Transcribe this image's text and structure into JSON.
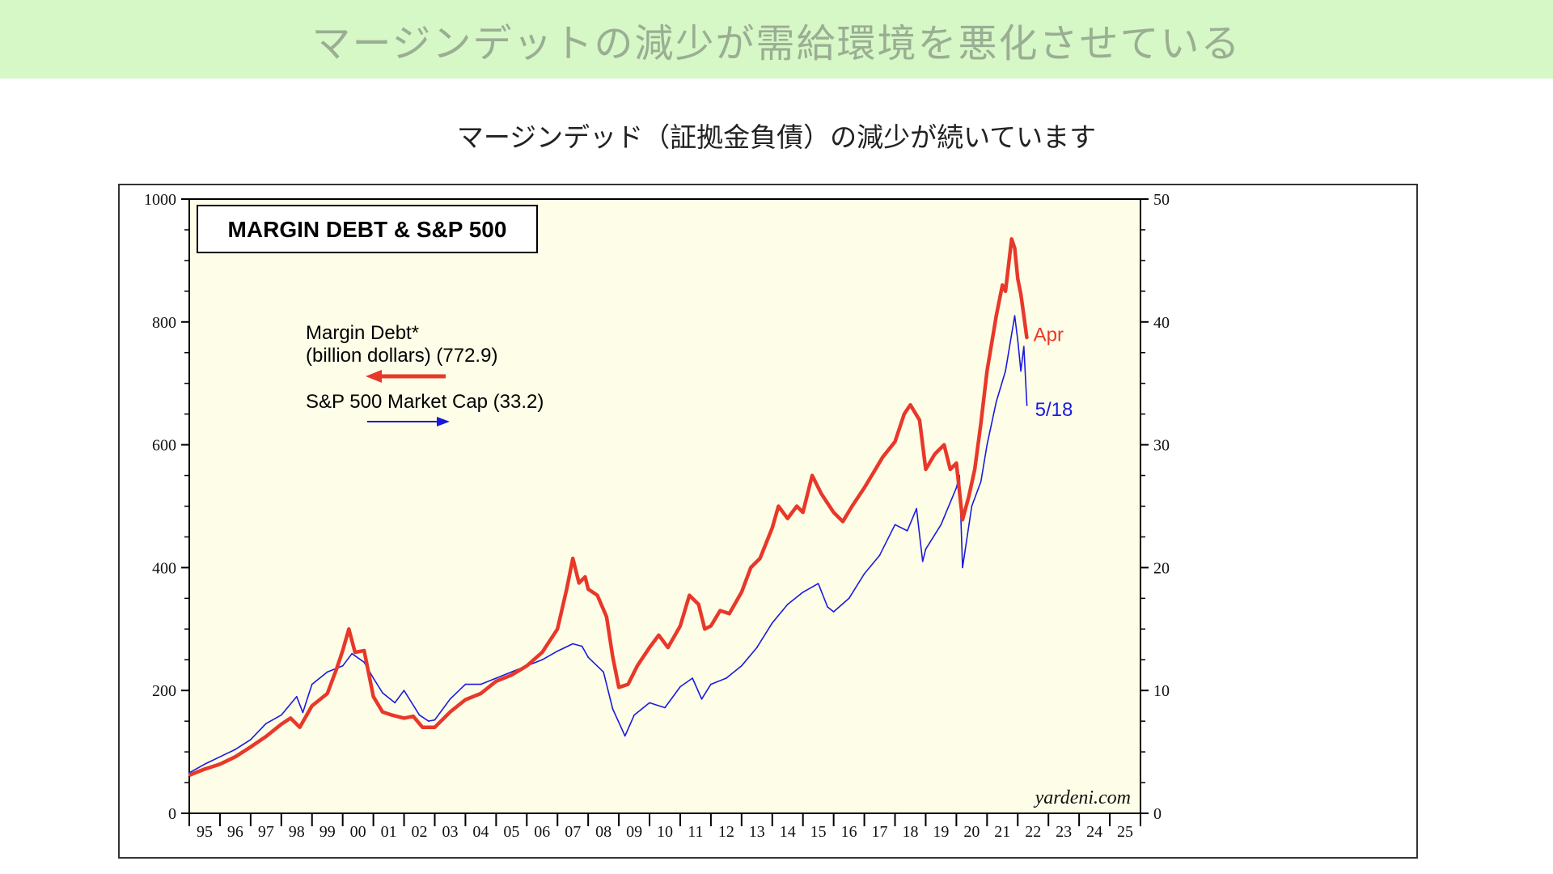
{
  "header": {
    "banner_title": "マージンデットの減少が需給環境を悪化させている",
    "subtitle": "マージンデッド（証拠金負債）の減少が続いています"
  },
  "colors": {
    "banner_bg": "#d6f7c6",
    "plot_bg": "#fefee8",
    "margin_debt": "#e8382a",
    "sp500": "#1a1adf"
  },
  "chart_data": {
    "type": "line",
    "title": "MARGIN DEBT & S&P 500",
    "credit": "yardeni.com",
    "x_tick_labels": [
      "95",
      "96",
      "97",
      "98",
      "99",
      "00",
      "01",
      "02",
      "03",
      "04",
      "05",
      "06",
      "07",
      "08",
      "09",
      "10",
      "11",
      "12",
      "13",
      "14",
      "15",
      "16",
      "17",
      "18",
      "19",
      "20",
      "21",
      "22",
      "23",
      "24",
      "25"
    ],
    "x_range": [
      1995,
      2026
    ],
    "left_axis": {
      "ylim": [
        0,
        1000
      ],
      "ticks": [
        "0",
        "200",
        "400",
        "600",
        "800",
        "1000"
      ]
    },
    "right_axis": {
      "ylim": [
        0,
        50
      ],
      "ticks": [
        "0",
        "10",
        "20",
        "30",
        "40",
        "50"
      ]
    },
    "grid": false,
    "legend_placement": "upper-left",
    "series": [
      {
        "name": "Margin Debt* (billion dollars) (772.9)",
        "legend_line1": "Margin Debt*",
        "legend_line2": "(billion dollars) (772.9)",
        "axis": "left",
        "end_label": "Apr",
        "points": [
          [
            1995.0,
            62
          ],
          [
            1995.5,
            72
          ],
          [
            1996.0,
            80
          ],
          [
            1996.5,
            92
          ],
          [
            1997.0,
            108
          ],
          [
            1997.5,
            125
          ],
          [
            1998.0,
            145
          ],
          [
            1998.3,
            155
          ],
          [
            1998.6,
            140
          ],
          [
            1999.0,
            175
          ],
          [
            1999.5,
            195
          ],
          [
            1999.8,
            235
          ],
          [
            2000.0,
            265
          ],
          [
            2000.2,
            300
          ],
          [
            2000.4,
            262
          ],
          [
            2000.7,
            265
          ],
          [
            2001.0,
            190
          ],
          [
            2001.3,
            165
          ],
          [
            2001.6,
            160
          ],
          [
            2002.0,
            155
          ],
          [
            2002.3,
            158
          ],
          [
            2002.6,
            140
          ],
          [
            2003.0,
            140
          ],
          [
            2003.5,
            165
          ],
          [
            2004.0,
            185
          ],
          [
            2004.5,
            195
          ],
          [
            2005.0,
            215
          ],
          [
            2005.5,
            225
          ],
          [
            2006.0,
            240
          ],
          [
            2006.5,
            262
          ],
          [
            2007.0,
            300
          ],
          [
            2007.3,
            365
          ],
          [
            2007.5,
            415
          ],
          [
            2007.7,
            375
          ],
          [
            2007.9,
            385
          ],
          [
            2008.0,
            365
          ],
          [
            2008.3,
            355
          ],
          [
            2008.6,
            320
          ],
          [
            2008.8,
            255
          ],
          [
            2009.0,
            205
          ],
          [
            2009.3,
            210
          ],
          [
            2009.6,
            240
          ],
          [
            2010.0,
            270
          ],
          [
            2010.3,
            290
          ],
          [
            2010.6,
            270
          ],
          [
            2011.0,
            305
          ],
          [
            2011.3,
            355
          ],
          [
            2011.6,
            340
          ],
          [
            2011.8,
            300
          ],
          [
            2012.0,
            305
          ],
          [
            2012.3,
            330
          ],
          [
            2012.6,
            325
          ],
          [
            2013.0,
            360
          ],
          [
            2013.3,
            400
          ],
          [
            2013.6,
            415
          ],
          [
            2014.0,
            465
          ],
          [
            2014.2,
            500
          ],
          [
            2014.5,
            480
          ],
          [
            2014.8,
            500
          ],
          [
            2015.0,
            490
          ],
          [
            2015.3,
            550
          ],
          [
            2015.6,
            520
          ],
          [
            2016.0,
            490
          ],
          [
            2016.3,
            475
          ],
          [
            2016.6,
            500
          ],
          [
            2017.0,
            530
          ],
          [
            2017.3,
            555
          ],
          [
            2017.6,
            580
          ],
          [
            2018.0,
            605
          ],
          [
            2018.3,
            650
          ],
          [
            2018.5,
            665
          ],
          [
            2018.8,
            640
          ],
          [
            2019.0,
            560
          ],
          [
            2019.3,
            585
          ],
          [
            2019.6,
            600
          ],
          [
            2019.8,
            560
          ],
          [
            2020.0,
            570
          ],
          [
            2020.2,
            478
          ],
          [
            2020.4,
            515
          ],
          [
            2020.6,
            560
          ],
          [
            2020.8,
            635
          ],
          [
            2021.0,
            720
          ],
          [
            2021.3,
            810
          ],
          [
            2021.5,
            860
          ],
          [
            2021.6,
            850
          ],
          [
            2021.8,
            935
          ],
          [
            2021.9,
            920
          ],
          [
            2022.0,
            870
          ],
          [
            2022.1,
            845
          ],
          [
            2022.2,
            810
          ],
          [
            2022.3,
            773
          ]
        ]
      },
      {
        "name": "S&P 500 Market Cap (33.2)",
        "legend_line1": "S&P 500 Market Cap (33.2)",
        "axis": "right",
        "end_label": "5/18",
        "points": [
          [
            1995.0,
            3.3
          ],
          [
            1995.5,
            4.0
          ],
          [
            1996.0,
            4.6
          ],
          [
            1996.5,
            5.2
          ],
          [
            1997.0,
            6.0
          ],
          [
            1997.5,
            7.3
          ],
          [
            1998.0,
            8.0
          ],
          [
            1998.5,
            9.5
          ],
          [
            1998.7,
            8.2
          ],
          [
            1999.0,
            10.5
          ],
          [
            1999.5,
            11.5
          ],
          [
            2000.0,
            12.0
          ],
          [
            2000.3,
            13.0
          ],
          [
            2000.7,
            12.3
          ],
          [
            2001.0,
            11.0
          ],
          [
            2001.3,
            9.8
          ],
          [
            2001.7,
            9.0
          ],
          [
            2002.0,
            10.0
          ],
          [
            2002.5,
            8.0
          ],
          [
            2002.8,
            7.5
          ],
          [
            2003.0,
            7.6
          ],
          [
            2003.5,
            9.3
          ],
          [
            2004.0,
            10.5
          ],
          [
            2004.5,
            10.5
          ],
          [
            2005.0,
            11.0
          ],
          [
            2005.5,
            11.5
          ],
          [
            2006.0,
            12.0
          ],
          [
            2006.5,
            12.5
          ],
          [
            2007.0,
            13.2
          ],
          [
            2007.5,
            13.8
          ],
          [
            2007.8,
            13.6
          ],
          [
            2008.0,
            12.7
          ],
          [
            2008.5,
            11.5
          ],
          [
            2008.8,
            8.5
          ],
          [
            2009.2,
            6.3
          ],
          [
            2009.5,
            8.0
          ],
          [
            2010.0,
            9.0
          ],
          [
            2010.5,
            8.6
          ],
          [
            2011.0,
            10.3
          ],
          [
            2011.4,
            11.0
          ],
          [
            2011.7,
            9.3
          ],
          [
            2012.0,
            10.5
          ],
          [
            2012.5,
            11.0
          ],
          [
            2013.0,
            12.0
          ],
          [
            2013.5,
            13.5
          ],
          [
            2014.0,
            15.5
          ],
          [
            2014.5,
            17.0
          ],
          [
            2015.0,
            18.0
          ],
          [
            2015.5,
            18.7
          ],
          [
            2015.8,
            16.8
          ],
          [
            2016.0,
            16.4
          ],
          [
            2016.5,
            17.5
          ],
          [
            2017.0,
            19.5
          ],
          [
            2017.5,
            21.0
          ],
          [
            2018.0,
            23.5
          ],
          [
            2018.4,
            23.0
          ],
          [
            2018.7,
            24.8
          ],
          [
            2018.9,
            20.5
          ],
          [
            2019.0,
            21.5
          ],
          [
            2019.5,
            23.5
          ],
          [
            2020.0,
            26.5
          ],
          [
            2020.1,
            27.5
          ],
          [
            2020.2,
            20.0
          ],
          [
            2020.5,
            25.0
          ],
          [
            2020.8,
            27.0
          ],
          [
            2021.0,
            30.0
          ],
          [
            2021.3,
            33.5
          ],
          [
            2021.6,
            36.0
          ],
          [
            2021.9,
            40.5
          ],
          [
            2022.0,
            38.5
          ],
          [
            2022.1,
            36.0
          ],
          [
            2022.2,
            38.0
          ],
          [
            2022.3,
            33.2
          ]
        ]
      }
    ]
  }
}
